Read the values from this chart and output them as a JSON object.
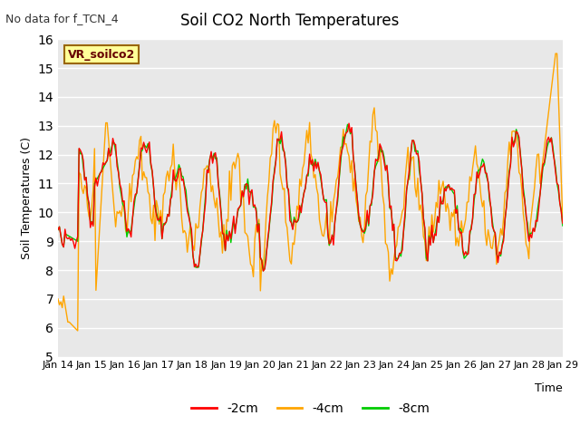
{
  "title": "Soil CO2 North Temperatures",
  "subtitle": "No data for f_TCN_4",
  "ylabel": "Soil Temperatures (C)",
  "xlabel": "Time",
  "ylim": [
    5.0,
    16.0
  ],
  "yticks": [
    5.0,
    6.0,
    7.0,
    8.0,
    9.0,
    10.0,
    11.0,
    12.0,
    13.0,
    14.0,
    15.0,
    16.0
  ],
  "xtick_labels": [
    "Jan 14",
    "Jan 15",
    "Jan 16",
    "Jan 17",
    "Jan 18",
    "Jan 19",
    "Jan 20",
    "Jan 21",
    "Jan 22",
    "Jan 23",
    "Jan 24",
    "Jan 25",
    "Jan 26",
    "Jan 27",
    "Jan 28",
    "Jan 29"
  ],
  "color_2cm": "#ff0000",
  "color_4cm": "#ffa500",
  "color_8cm": "#00cc00",
  "legend_box_color": "#ffff99",
  "legend_box_edge": "#996600",
  "legend_label": "VR_soilco2",
  "bg_color": "#e8e8e8",
  "line_width": 1.0,
  "n_points": 360
}
